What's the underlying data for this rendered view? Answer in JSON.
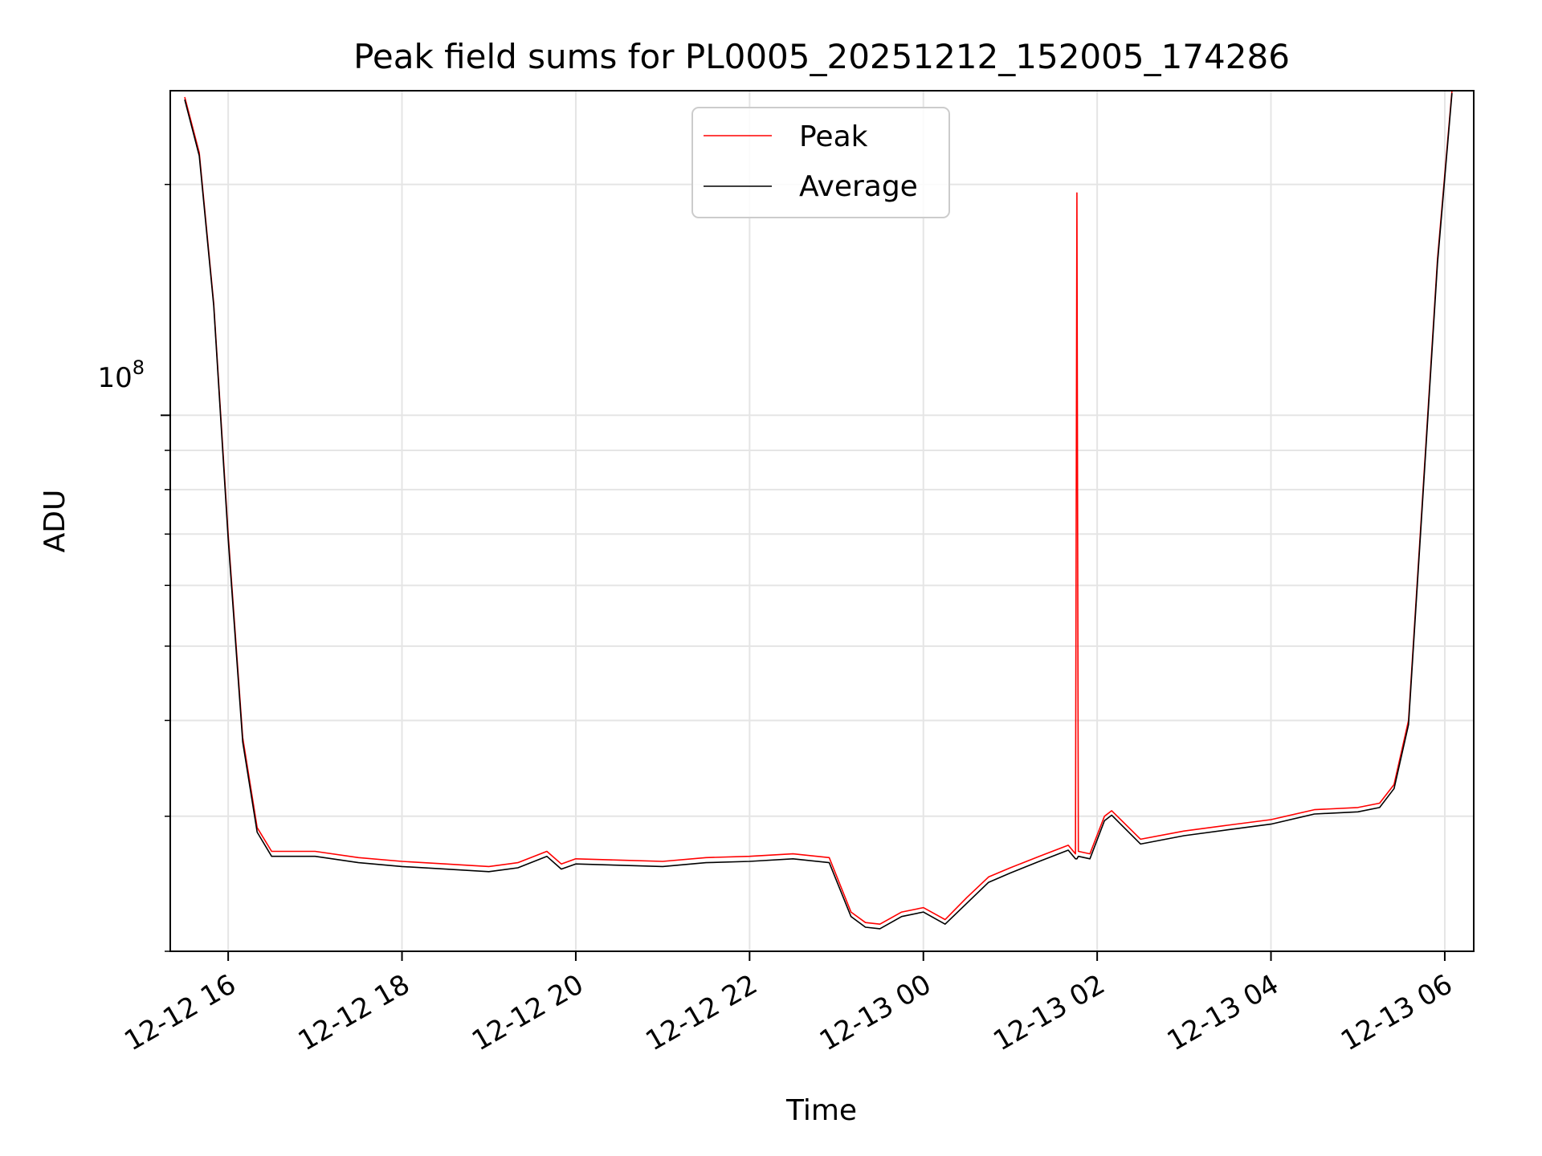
{
  "chart_data": {
    "type": "line",
    "title": "Peak field sums for PL0005_20251212_152005_174286",
    "xlabel": "Time",
    "ylabel": "ADU",
    "yscale": "log",
    "xlim": [
      "2025-12-12 15:20",
      "2025-12-13 06:20"
    ],
    "ylim": [
      20000000,
      265000000
    ],
    "x_ticks": [
      "12-12 16",
      "12-12 18",
      "12-12 20",
      "12-12 22",
      "12-13 00",
      "12-13 02",
      "12-13 04",
      "12-13 06"
    ],
    "y_tick_label": {
      "base": "10",
      "exponent": "8"
    },
    "y_major_tick": 100000000,
    "grid": true,
    "legend_position": "upper center",
    "legend": [
      "Peak",
      "Average"
    ],
    "colors": {
      "Peak": "#ff0000",
      "Average": "#000000",
      "grid": "#e5e5e5"
    },
    "series": [
      {
        "name": "Peak",
        "x": [
          "2025-12-12 15:30",
          "2025-12-12 15:40",
          "2025-12-12 15:50",
          "2025-12-12 16:00",
          "2025-12-12 16:10",
          "2025-12-12 16:20",
          "2025-12-12 16:30",
          "2025-12-12 17:00",
          "2025-12-12 17:30",
          "2025-12-12 18:00",
          "2025-12-12 18:30",
          "2025-12-12 19:00",
          "2025-12-12 19:20",
          "2025-12-12 19:40",
          "2025-12-12 19:50",
          "2025-12-12 20:00",
          "2025-12-12 20:30",
          "2025-12-12 21:00",
          "2025-12-12 21:30",
          "2025-12-12 22:00",
          "2025-12-12 22:30",
          "2025-12-12 22:55",
          "2025-12-12 23:10",
          "2025-12-12 23:20",
          "2025-12-12 23:30",
          "2025-12-12 23:45",
          "2025-12-13 00:00",
          "2025-12-13 00:15",
          "2025-12-13 00:30",
          "2025-12-13 00:45",
          "2025-12-13 01:00",
          "2025-12-13 01:20",
          "2025-12-13 01:40",
          "2025-12-13 01:45",
          "2025-12-13 01:46",
          "2025-12-13 01:47",
          "2025-12-13 01:55",
          "2025-12-13 02:05",
          "2025-12-13 02:10",
          "2025-12-13 02:30",
          "2025-12-13 03:00",
          "2025-12-13 03:30",
          "2025-12-13 04:00",
          "2025-12-13 04:30",
          "2025-12-13 05:00",
          "2025-12-13 05:15",
          "2025-12-13 05:25",
          "2025-12-13 05:35",
          "2025-12-13 05:45",
          "2025-12-13 05:55",
          "2025-12-13 06:05"
        ],
        "values": [
          260000000,
          220000000,
          140000000,
          70000000,
          38000000,
          29000000,
          27000000,
          27000000,
          26500000,
          26200000,
          26000000,
          25800000,
          26100000,
          27000000,
          26000000,
          26400000,
          26300000,
          26200000,
          26500000,
          26600000,
          26800000,
          26500000,
          22500000,
          21800000,
          21700000,
          22500000,
          22800000,
          22000000,
          23500000,
          25000000,
          25700000,
          26600000,
          27500000,
          26800000,
          195000000,
          27000000,
          26800000,
          30000000,
          30500000,
          28000000,
          28700000,
          29200000,
          29700000,
          30600000,
          30800000,
          31200000,
          33000000,
          40000000,
          80000000,
          160000000,
          265000000
        ]
      },
      {
        "name": "Average",
        "x": [
          "2025-12-12 15:30",
          "2025-12-12 15:40",
          "2025-12-12 15:50",
          "2025-12-12 16:00",
          "2025-12-12 16:10",
          "2025-12-12 16:20",
          "2025-12-12 16:30",
          "2025-12-12 17:00",
          "2025-12-12 17:30",
          "2025-12-12 18:00",
          "2025-12-12 18:30",
          "2025-12-12 19:00",
          "2025-12-12 19:20",
          "2025-12-12 19:40",
          "2025-12-12 19:50",
          "2025-12-12 20:00",
          "2025-12-12 20:30",
          "2025-12-12 21:00",
          "2025-12-12 21:30",
          "2025-12-12 22:00",
          "2025-12-12 22:30",
          "2025-12-12 22:55",
          "2025-12-12 23:10",
          "2025-12-12 23:20",
          "2025-12-12 23:30",
          "2025-12-12 23:45",
          "2025-12-13 00:00",
          "2025-12-13 00:15",
          "2025-12-13 00:30",
          "2025-12-13 00:45",
          "2025-12-13 01:00",
          "2025-12-13 01:20",
          "2025-12-13 01:40",
          "2025-12-13 01:45",
          "2025-12-13 01:46",
          "2025-12-13 01:47",
          "2025-12-13 01:55",
          "2025-12-13 02:05",
          "2025-12-13 02:10",
          "2025-12-13 02:30",
          "2025-12-13 03:00",
          "2025-12-13 03:30",
          "2025-12-13 04:00",
          "2025-12-13 04:30",
          "2025-12-13 05:00",
          "2025-12-13 05:15",
          "2025-12-13 05:25",
          "2025-12-13 05:35",
          "2025-12-13 05:45",
          "2025-12-13 05:55",
          "2025-12-13 06:05"
        ],
        "values": [
          258000000,
          218000000,
          139000000,
          69000000,
          37500000,
          28600000,
          26600000,
          26600000,
          26100000,
          25800000,
          25600000,
          25400000,
          25700000,
          26600000,
          25600000,
          26000000,
          25900000,
          25800000,
          26100000,
          26200000,
          26400000,
          26100000,
          22200000,
          21500000,
          21400000,
          22200000,
          22500000,
          21700000,
          23100000,
          24600000,
          25300000,
          26200000,
          27100000,
          26400000,
          26400000,
          26600000,
          26400000,
          29600000,
          30100000,
          27600000,
          28300000,
          28800000,
          29300000,
          30200000,
          30400000,
          30800000,
          32600000,
          39500000,
          79000000,
          158000000,
          263000000
        ]
      }
    ]
  }
}
